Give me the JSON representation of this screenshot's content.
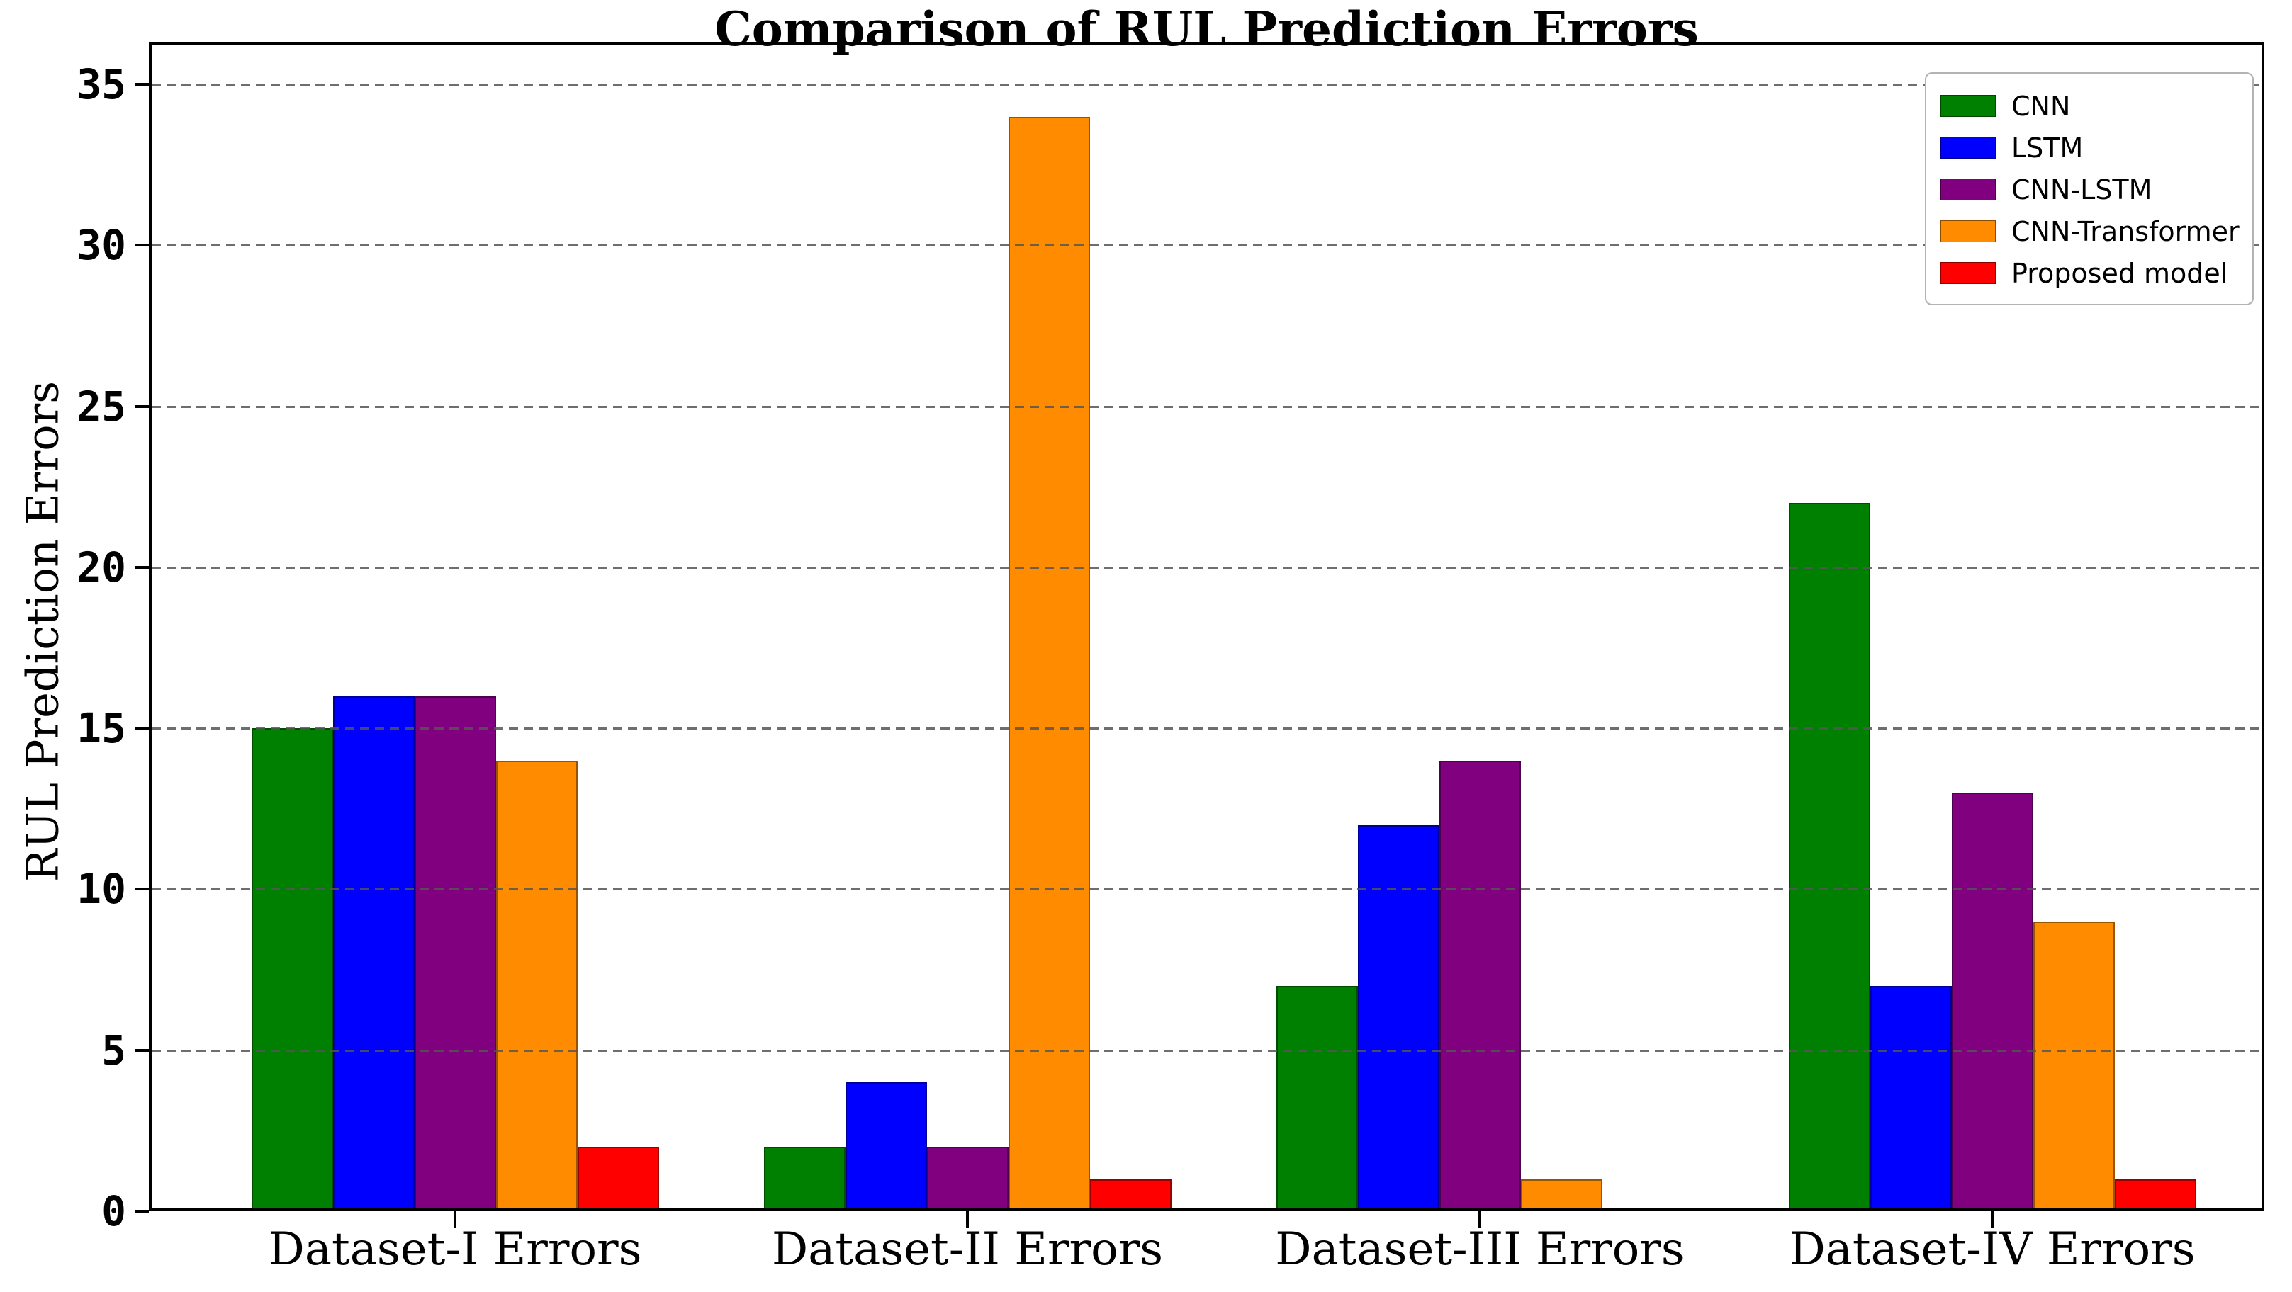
{
  "chart_data": {
    "type": "bar",
    "title": "Comparison of RUL Prediction Errors",
    "xlabel": "",
    "ylabel": "RUL Prediction Errors",
    "categories": [
      "Dataset-I Errors",
      "Dataset-II Errors",
      "Dataset-III Errors",
      "Dataset-IV Errors"
    ],
    "series": [
      {
        "name": "CNN",
        "color": "#008000",
        "values": [
          15,
          2,
          7,
          22
        ]
      },
      {
        "name": "LSTM",
        "color": "#0000ff",
        "values": [
          16,
          4,
          12,
          7
        ]
      },
      {
        "name": "CNN-LSTM",
        "color": "#800080",
        "values": [
          16,
          2,
          14,
          13
        ]
      },
      {
        "name": "CNN-Transformer",
        "color": "#ff8c00",
        "values": [
          14,
          34,
          1,
          9
        ]
      },
      {
        "name": "Proposed model",
        "color": "#ff0000",
        "values": [
          2,
          1,
          0,
          1
        ]
      }
    ],
    "yticks": [
      0,
      5,
      10,
      15,
      20,
      25,
      30,
      35
    ],
    "ylim": [
      0,
      36.3
    ],
    "grid": {
      "axis": "y",
      "style": "dashed",
      "color": "#555555",
      "above_bars": true
    },
    "legend": {
      "position": "upper right",
      "labels": [
        "CNN",
        "LSTM",
        "CNN-LSTM",
        "CNN-Transformer",
        "Proposed model"
      ]
    }
  }
}
